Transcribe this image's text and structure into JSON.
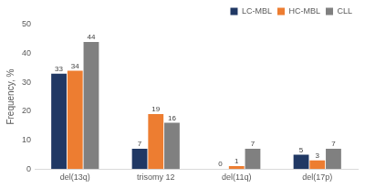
{
  "chart_data": {
    "type": "bar",
    "y_label": "Frequency, %",
    "categories": [
      "del(13q)",
      "trisomy 12",
      "del(11q)",
      "del(17p)"
    ],
    "series": [
      {
        "name": "LC-MBL",
        "color": "#203864",
        "values": [
          33,
          7,
          0,
          5
        ]
      },
      {
        "name": "HC-MBL",
        "color": "#ED7D31",
        "values": [
          34,
          19,
          1,
          3
        ]
      },
      {
        "name": "CLL",
        "color": "#808080",
        "values": [
          44,
          16,
          7,
          7
        ]
      }
    ],
    "ylim": [
      0,
      50
    ],
    "yticks": [
      0,
      10,
      20,
      30,
      40,
      50
    ],
    "grid": false,
    "legend": "top-right",
    "data_labels": true
  }
}
